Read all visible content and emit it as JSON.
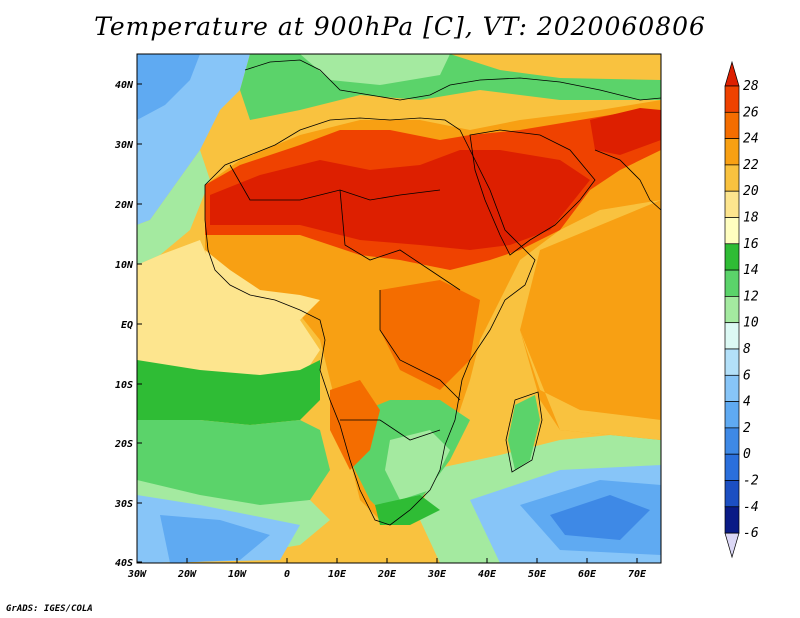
{
  "title": "Temperature at 900hPa [C], VT: 2020060806",
  "credit": "GrADS: IGES/COLA",
  "map": {
    "lat_range": [
      -40,
      45
    ],
    "lon_range": [
      -30,
      75
    ],
    "lat_ticks": [
      "40N",
      "30N",
      "20N",
      "10N",
      "EQ",
      "10S",
      "20S",
      "30S",
      "40S"
    ],
    "lon_ticks": [
      "30W",
      "20W",
      "10W",
      "0",
      "10E",
      "20E",
      "30E",
      "40E",
      "50E",
      "60E",
      "70E"
    ],
    "regions": {
      "hottest_core": "Sahara, Arabian Peninsula, Middle East (26-28 C)",
      "coolest": "South Atlantic and Southern Indian Ocean near 35-40S (2-8 C)"
    }
  },
  "colorbar": {
    "labels": [
      "28",
      "26",
      "24",
      "22",
      "20",
      "18",
      "16",
      "14",
      "12",
      "10",
      "8",
      "6",
      "4",
      "2",
      "0",
      "-2",
      "-4",
      "-6"
    ],
    "colors": [
      "#dd1f00",
      "#ef4200",
      "#f46d00",
      "#f8a013",
      "#f9c23f",
      "#fde58e",
      "#fffec0",
      "#2fbc35",
      "#5bd36a",
      "#a4eaa0",
      "#dcf9f4",
      "#b3e0f9",
      "#87c5f8",
      "#5faaf2",
      "#3e89e6",
      "#2a6fdc",
      "#1c4fc2",
      "#0a1b86",
      "#dcd8f6"
    ]
  }
}
